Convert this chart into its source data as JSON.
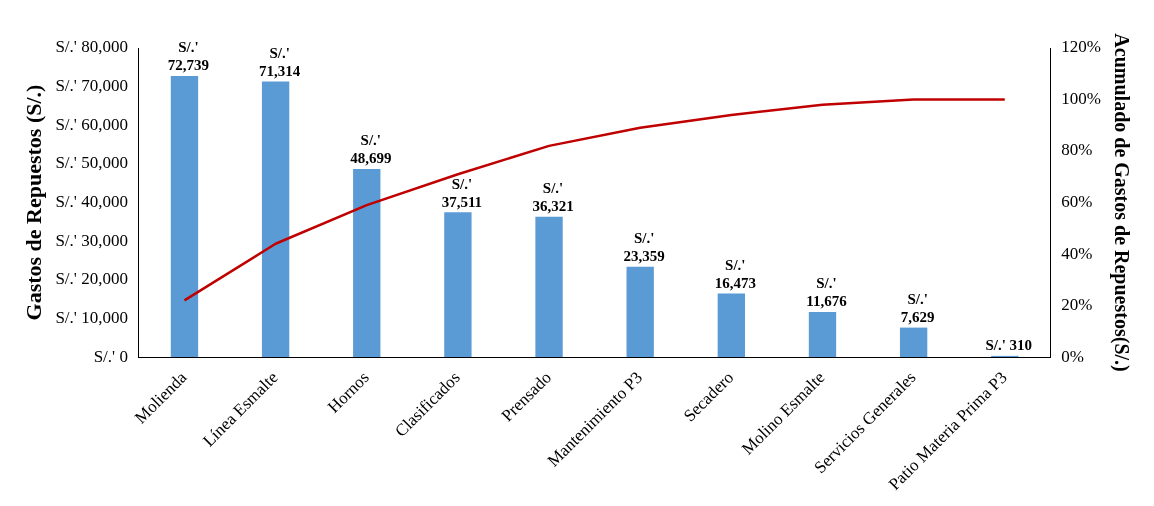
{
  "chart_data": {
    "type": "bar",
    "ylabel": "Gastos de Repuestos (S/.)",
    "y2label": "Acumulado de Gastos de Repuestos(S/.)",
    "categories": [
      "Molienda",
      "Línea Esmalte",
      "Hornos",
      "Clasificados",
      "Prensado",
      "Mantenimiento P3",
      "Secadero",
      "Molino Esmalte",
      "Servicios Generales",
      "Patio Materia Prima P3"
    ],
    "series": [
      {
        "color": "#5b9bd5",
        "values": [
          72739,
          71314,
          48699,
          37511,
          36321,
          23359,
          16473,
          11676,
          7629,
          310
        ],
        "value_labels": [
          "S/.' 72,739",
          "S/.' 71,314",
          "S/.' 48,699",
          "S/.' 37,511",
          "S/.' 36,321",
          "S/.' 23,359",
          "S/.' 16,473",
          "S/.' 11,676",
          "S/.' 7,629",
          "S/.' 310"
        ]
      },
      {
        "type": "line",
        "axis": "y2",
        "color": "#c00000",
        "values": [
          22,
          44,
          59,
          71,
          82,
          89,
          94,
          98,
          100,
          100
        ]
      }
    ],
    "ylim": [
      0,
      80000
    ],
    "yticks": [
      {
        "value": 0,
        "label": "S/.' 0"
      },
      {
        "value": 10000,
        "label": "S/.' 10,000"
      },
      {
        "value": 20000,
        "label": "S/.' 20,000"
      },
      {
        "value": 30000,
        "label": "S/.' 30,000"
      },
      {
        "value": 40000,
        "label": "S/.' 40,000"
      },
      {
        "value": 50000,
        "label": "S/.' 50,000"
      },
      {
        "value": 60000,
        "label": "S/.' 60,000"
      },
      {
        "value": 70000,
        "label": "S/.' 70,000"
      },
      {
        "value": 80000,
        "label": "S/.' 80,000"
      }
    ],
    "y2lim": [
      0,
      120
    ],
    "y2ticks": [
      {
        "value": 0,
        "label": "0%"
      },
      {
        "value": 20,
        "label": "20%"
      },
      {
        "value": 40,
        "label": "40%"
      },
      {
        "value": 60,
        "label": "60%"
      },
      {
        "value": 80,
        "label": "80%"
      },
      {
        "value": 100,
        "label": "100%"
      },
      {
        "value": 120,
        "label": "120%"
      }
    ],
    "grid": false,
    "legend": false,
    "marker": "none"
  }
}
